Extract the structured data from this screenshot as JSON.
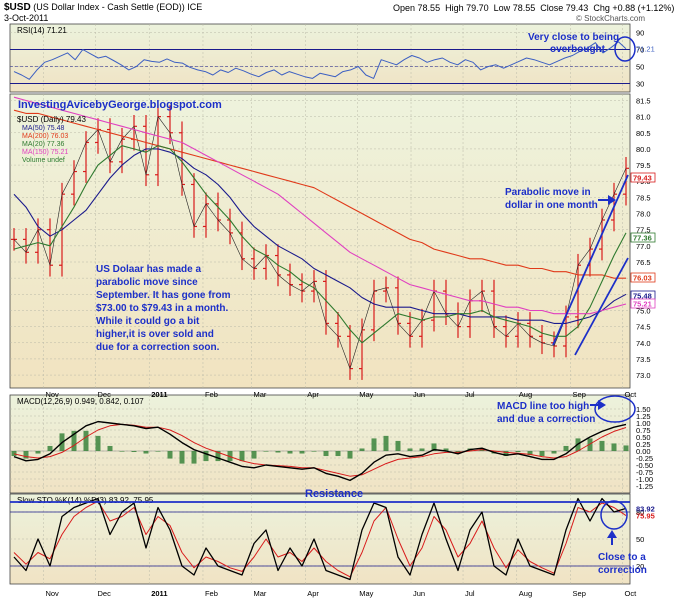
{
  "header": {
    "symbol": "$USD",
    "description": "(US Dollar Index - Cash Settle (EOD)) ICE",
    "date": "3-Oct-2011",
    "brand": "© StockCharts.com",
    "ohlc": [
      {
        "label": "Open",
        "value": "78.55"
      },
      {
        "label": "High",
        "value": "79.70"
      },
      {
        "label": "Low",
        "value": "78.55"
      },
      {
        "label": "Close",
        "value": "79.43"
      },
      {
        "label": "Chg",
        "value": "+0.88 (+1.12%)"
      }
    ]
  },
  "colors": {
    "price_bar": "#d81b1b",
    "ma50": "#1a1a8c",
    "ma200": "#e03a1a",
    "ma20": "#2f7a2f",
    "ma150": "#e040c0",
    "rsi_line": "#3c5fc2",
    "annotation": "#1c2fc8",
    "macd_line": "#000000",
    "signal_line": "#d81b1b",
    "histogram": "#2e7d32"
  },
  "chart_data": [
    {
      "type": "line",
      "panel": "RSI",
      "title": "RSI(14) 71.21",
      "ylim": [
        20,
        100
      ],
      "tick_labels": [
        "90",
        "70",
        "50",
        "30"
      ],
      "last_value_label": "71.21",
      "series": [
        {
          "name": "RSI(14)",
          "values": [
            44,
            40,
            35,
            46,
            55,
            58,
            62,
            66,
            58,
            70,
            65,
            60,
            62,
            57,
            52,
            46,
            50,
            58,
            56,
            55,
            59,
            55,
            54,
            49,
            46,
            44,
            40,
            46,
            43,
            48,
            45,
            41,
            38,
            43,
            46,
            40,
            44,
            41,
            38,
            36,
            42,
            40,
            38,
            44,
            46,
            50,
            40,
            36,
            58,
            55,
            52,
            58,
            63,
            60,
            55,
            58,
            60,
            55,
            52,
            58,
            55,
            46,
            50,
            52,
            48,
            52,
            56,
            60,
            58,
            55,
            52,
            56,
            60,
            63,
            68,
            72,
            78,
            66,
            72,
            79,
            71
          ]
        }
      ]
    },
    {
      "type": "line",
      "panel": "Price",
      "title": "$USD (Daily) 79.43",
      "ylim": [
        72.6,
        81.7
      ],
      "tick_labels": [
        "81.5",
        "81.0",
        "80.5",
        "80.0",
        "79.5",
        "79.0",
        "78.5",
        "78.0",
        "77.5",
        "77.0",
        "76.5",
        "76.0",
        "75.5",
        "75.0",
        "74.5",
        "74.0",
        "73.5",
        "73.0"
      ],
      "x": [
        "2010-10-15",
        "2010-10-22",
        "2010-10-29",
        "2010-11-05",
        "2010-11-12",
        "2010-11-19",
        "2010-11-26",
        "2010-12-03",
        "2010-12-10",
        "2010-12-17",
        "2010-12-24",
        "2010-12-31",
        "2011-01-07",
        "2011-01-14",
        "2011-01-21",
        "2011-01-28",
        "2011-02-04",
        "2011-02-11",
        "2011-02-18",
        "2011-02-25",
        "2011-03-04",
        "2011-03-11",
        "2011-03-18",
        "2011-03-25",
        "2011-04-01",
        "2011-04-08",
        "2011-04-15",
        "2011-04-22",
        "2011-04-29",
        "2011-05-06",
        "2011-05-13",
        "2011-05-20",
        "2011-05-27",
        "2011-06-03",
        "2011-06-10",
        "2011-06-17",
        "2011-06-24",
        "2011-07-01",
        "2011-07-08",
        "2011-07-15",
        "2011-07-22",
        "2011-07-29",
        "2011-08-05",
        "2011-08-12",
        "2011-08-19",
        "2011-08-26",
        "2011-09-02",
        "2011-09-09",
        "2011-09-16",
        "2011-09-23",
        "2011-09-30",
        "2011-10-03"
      ],
      "month_labels": [
        "Nov",
        "Dec",
        "2011",
        "Feb",
        "Mar",
        "Apr",
        "May",
        "Jun",
        "Jul",
        "Aug",
        "Sep",
        "Oct"
      ],
      "series": [
        {
          "name": "$USD",
          "values": [
            77.2,
            76.8,
            77.5,
            76.4,
            78.6,
            79.3,
            80.2,
            80.6,
            79.6,
            80.3,
            80.7,
            79.2,
            81.0,
            80.5,
            78.9,
            77.6,
            78.3,
            77.8,
            77.4,
            76.6,
            76.3,
            76.7,
            76.1,
            75.8,
            75.6,
            75.9,
            74.6,
            74.2,
            73.2,
            74.4,
            75.6,
            75.7,
            74.6,
            74.2,
            74.7,
            75.6,
            74.9,
            74.5,
            75.3,
            75.6,
            74.5,
            74.2,
            74.6,
            74.2,
            74.0,
            73.9,
            74.8,
            76.4,
            76.9,
            77.8,
            78.6,
            79.4
          ]
        },
        {
          "name": "MA(50)",
          "label": "MA(50) 75.48",
          "values": [
            78.6,
            78.2,
            77.6,
            77.3,
            77.5,
            77.8,
            78.1,
            78.6,
            79.1,
            79.5,
            79.8,
            80.0,
            80.0,
            79.9,
            79.7,
            79.4,
            79.2,
            78.9,
            78.5,
            78.0,
            77.6,
            77.3,
            77.0,
            76.8,
            76.6,
            76.3,
            76.1,
            75.9,
            75.7,
            75.4,
            75.2,
            75.1,
            75.1,
            75.1,
            75.0,
            74.9,
            74.9,
            74.9,
            74.8,
            74.8,
            74.8,
            74.8,
            74.7,
            74.7,
            74.7,
            74.6,
            74.6,
            74.7,
            74.8,
            75.0,
            75.3,
            75.5
          ]
        },
        {
          "name": "MA(200)",
          "label": "MA(200) 76.03",
          "values": [
            81.2,
            81.1,
            81.1,
            81.0,
            80.9,
            80.8,
            80.7,
            80.6,
            80.5,
            80.4,
            80.3,
            80.2,
            80.1,
            80.0,
            79.9,
            79.8,
            79.7,
            79.6,
            79.5,
            79.4,
            79.3,
            79.2,
            79.1,
            79.0,
            78.9,
            78.8,
            78.6,
            78.4,
            78.2,
            78.0,
            77.8,
            77.6,
            77.4,
            77.2,
            77.1,
            76.9,
            76.8,
            76.7,
            76.6,
            76.6,
            76.5,
            76.4,
            76.4,
            76.3,
            76.3,
            76.2,
            76.2,
            76.1,
            76.1,
            76.1,
            76.0,
            76.0
          ]
        },
        {
          "name": "MA(20)",
          "label": "MA(20) 77.36",
          "values": [
            76.9,
            77.0,
            77.1,
            77.0,
            77.6,
            78.2,
            78.9,
            79.5,
            79.8,
            80.1,
            80.0,
            79.9,
            80.1,
            80.0,
            79.6,
            79.1,
            78.6,
            78.2,
            77.8,
            77.3,
            76.9,
            76.7,
            76.4,
            76.2,
            75.9,
            75.7,
            75.3,
            74.9,
            74.4,
            74.0,
            74.3,
            74.6,
            74.9,
            74.8,
            74.7,
            74.8,
            74.8,
            74.9,
            74.9,
            75.0,
            74.8,
            74.7,
            74.6,
            74.5,
            74.3,
            74.2,
            74.2,
            74.5,
            75.1,
            75.9,
            76.7,
            77.4
          ]
        },
        {
          "name": "MA(150)",
          "label": "MA(150) 75.21",
          "values": [
            81.6,
            81.5,
            81.4,
            81.3,
            81.2,
            81.1,
            81.0,
            80.9,
            80.8,
            80.7,
            80.6,
            80.5,
            80.4,
            80.3,
            80.2,
            80.0,
            79.8,
            79.6,
            79.4,
            79.2,
            79.0,
            78.8,
            78.6,
            78.3,
            78.0,
            77.7,
            77.4,
            77.1,
            76.8,
            76.6,
            76.4,
            76.2,
            76.0,
            75.8,
            75.7,
            75.6,
            75.5,
            75.4,
            75.3,
            75.3,
            75.2,
            75.1,
            75.1,
            75.0,
            75.0,
            74.9,
            74.9,
            74.9,
            74.9,
            75.0,
            75.1,
            75.2
          ]
        }
      ],
      "side_labels": [
        "79.43",
        "77.36",
        "76.03",
        "75.48",
        "75.21"
      ],
      "volume_label": "Volume undef"
    },
    {
      "type": "line",
      "panel": "MACD",
      "title": "MACD(12,26,9) 0.949, 0.842, 0.107",
      "ylim": [
        -1.5,
        2.0
      ],
      "tick_labels": [
        "1.50",
        "1.25",
        "1.00",
        "0.75",
        "0.50",
        "0.25",
        "0.00",
        "-0.25",
        "-0.50",
        "-0.75",
        "-1.00",
        "-1.25"
      ],
      "series": [
        {
          "name": "MACD",
          "values": [
            -0.2,
            -0.35,
            -0.3,
            -0.1,
            0.3,
            0.6,
            0.9,
            1.05,
            1.0,
            0.95,
            0.9,
            0.8,
            0.85,
            0.6,
            0.3,
            0.05,
            -0.1,
            -0.25,
            -0.4,
            -0.55,
            -0.6,
            -0.5,
            -0.55,
            -0.6,
            -0.65,
            -0.6,
            -0.8,
            -0.9,
            -1.05,
            -0.8,
            -0.4,
            -0.15,
            -0.1,
            -0.2,
            -0.15,
            0.05,
            0.0,
            -0.1,
            0.05,
            0.1,
            -0.05,
            -0.15,
            -0.1,
            -0.2,
            -0.3,
            -0.3,
            -0.1,
            0.25,
            0.5,
            0.7,
            0.85,
            0.95
          ]
        },
        {
          "name": "Signal",
          "values": [
            -0.1,
            -0.2,
            -0.25,
            -0.2,
            -0.05,
            0.2,
            0.5,
            0.75,
            0.9,
            0.95,
            0.92,
            0.85,
            0.85,
            0.75,
            0.55,
            0.3,
            0.1,
            -0.05,
            -0.2,
            -0.35,
            -0.45,
            -0.5,
            -0.52,
            -0.55,
            -0.6,
            -0.6,
            -0.7,
            -0.8,
            -0.9,
            -0.85,
            -0.65,
            -0.45,
            -0.3,
            -0.25,
            -0.2,
            -0.1,
            -0.05,
            -0.05,
            0.0,
            0.05,
            0.0,
            -0.05,
            -0.08,
            -0.12,
            -0.2,
            -0.25,
            -0.2,
            0.0,
            0.25,
            0.5,
            0.7,
            0.84
          ]
        }
      ]
    },
    {
      "type": "line",
      "panel": "Slow STO",
      "title": "Slow STO %K(14) %D(3) 83.92, 75.95",
      "ylim": [
        0,
        100
      ],
      "tick_labels": [
        "80",
        "50",
        "20"
      ],
      "series": [
        {
          "name": "%K(14)",
          "values": [
            30,
            15,
            50,
            20,
            75,
            85,
            90,
            95,
            55,
            80,
            90,
            40,
            85,
            60,
            20,
            10,
            40,
            20,
            15,
            10,
            45,
            60,
            15,
            40,
            20,
            50,
            15,
            10,
            5,
            60,
            90,
            85,
            30,
            10,
            55,
            90,
            50,
            15,
            60,
            80,
            20,
            10,
            50,
            20,
            15,
            10,
            60,
            95,
            70,
            95,
            80,
            84
          ]
        },
        {
          "name": "%D(3)",
          "values": [
            35,
            22,
            35,
            28,
            55,
            75,
            85,
            92,
            70,
            75,
            85,
            55,
            75,
            65,
            35,
            18,
            30,
            25,
            18,
            14,
            30,
            50,
            30,
            35,
            25,
            40,
            25,
            15,
            8,
            35,
            70,
            85,
            50,
            20,
            40,
            75,
            60,
            30,
            45,
            70,
            40,
            18,
            38,
            25,
            18,
            12,
            45,
            85,
            80,
            90,
            85,
            76
          ]
        }
      ],
      "side_labels": [
        "83.92",
        "75.95"
      ]
    }
  ],
  "annotations": {
    "rsi_note_line1": "Very close to being",
    "rsi_note_line2": "overbought",
    "blog": "InvestingAvicebyGeorge.blogspot.com",
    "comment": [
      "US Dolaar has made a",
      "parabolic move since",
      "September. It has gone from",
      "$73.00 to $79.43 in a month.",
      "While it could go a bit",
      "higher,it is over sold and",
      "due for a correction soon."
    ],
    "parabolic_line1": "Parabolic move in",
    "parabolic_line2": "dollar in one month",
    "macd_note_line1": "MACD line too high",
    "macd_note_line2": "and due a correction",
    "resistance": "Resistance",
    "sto_note_line1": "Close to a",
    "sto_note_line2": "correction"
  }
}
